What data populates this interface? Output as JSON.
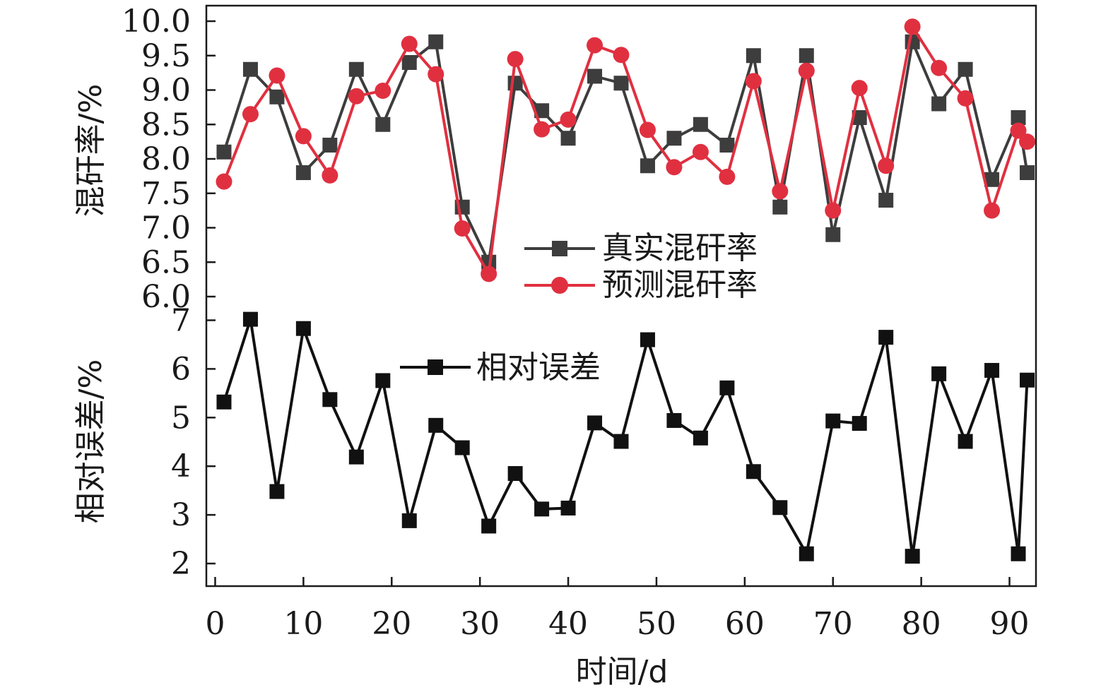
{
  "chart_data": [
    {
      "type": "line",
      "panel": "top",
      "ylabel": "混矸率/%",
      "ylim": [
        6.0,
        10.0
      ],
      "yticks": [
        "6.0",
        "6.5",
        "7.0",
        "7.5",
        "8.0",
        "8.5",
        "9.0",
        "9.5",
        "10.0"
      ],
      "x": [
        1,
        4,
        7,
        10,
        13,
        16,
        19,
        22,
        25,
        28,
        31,
        34,
        37,
        40,
        43,
        46,
        49,
        52,
        55,
        58,
        61,
        64,
        67,
        70,
        73,
        76,
        79,
        82,
        85,
        88,
        91,
        92
      ],
      "series": [
        {
          "name": "真实混矸率",
          "color": "#3d3d3d",
          "marker": "square",
          "values": [
            8.1,
            9.3,
            8.9,
            7.8,
            8.2,
            9.3,
            8.5,
            9.4,
            9.7,
            7.3,
            6.5,
            9.1,
            8.7,
            8.3,
            9.2,
            9.1,
            7.9,
            8.3,
            8.5,
            8.2,
            9.5,
            7.3,
            9.5,
            6.9,
            8.6,
            7.4,
            9.7,
            8.8,
            9.3,
            7.7,
            8.6,
            7.8
          ]
        },
        {
          "name": "预测混矸率",
          "color": "#e03040",
          "marker": "circle",
          "values": [
            7.67,
            8.65,
            9.21,
            8.33,
            7.76,
            8.91,
            8.99,
            9.67,
            9.23,
            6.99,
            6.33,
            9.45,
            8.43,
            8.57,
            9.65,
            9.51,
            8.42,
            7.88,
            8.1,
            7.74,
            9.13,
            7.53,
            9.28,
            7.25,
            9.03,
            7.9,
            9.92,
            9.32,
            8.88,
            7.25,
            8.41,
            8.25
          ]
        }
      ]
    },
    {
      "type": "line",
      "panel": "bottom",
      "ylabel": "相对误差/%",
      "ylim": [
        1.5,
        7.2
      ],
      "yticks": [
        "2",
        "3",
        "4",
        "5",
        "6",
        "7"
      ],
      "x": [
        1,
        4,
        7,
        10,
        13,
        16,
        19,
        22,
        25,
        28,
        31,
        34,
        37,
        40,
        43,
        46,
        49,
        52,
        55,
        58,
        61,
        64,
        67,
        70,
        73,
        76,
        79,
        82,
        85,
        88,
        91,
        92
      ],
      "series": [
        {
          "name": "相对误差",
          "color": "#111111",
          "marker": "square",
          "values": [
            5.32,
            7.02,
            3.48,
            6.83,
            5.37,
            4.19,
            5.76,
            2.88,
            4.84,
            4.38,
            2.77,
            3.85,
            3.12,
            3.14,
            4.89,
            4.51,
            6.6,
            4.94,
            4.58,
            5.61,
            3.89,
            3.15,
            2.2,
            4.93,
            4.88,
            6.65,
            2.15,
            5.9,
            4.51,
            5.97,
            2.2,
            5.77
          ]
        }
      ]
    }
  ],
  "xaxis": {
    "label": "时间/d",
    "xlim": [
      -1,
      93
    ],
    "ticks": [
      "0",
      "10",
      "20",
      "30",
      "40",
      "50",
      "60",
      "70",
      "80",
      "90"
    ]
  }
}
